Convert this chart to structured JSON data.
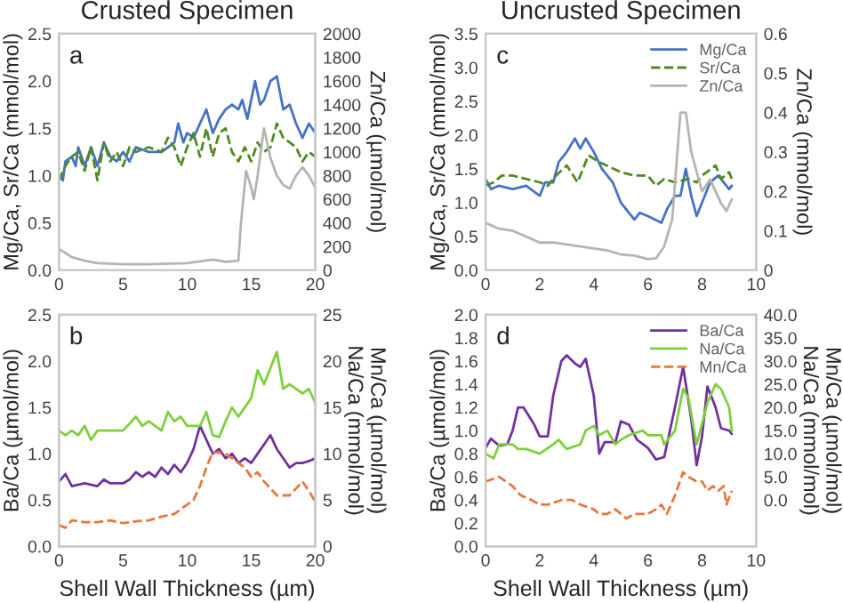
{
  "chart_data": [
    {
      "type": "line",
      "title": "Crusted Specimen",
      "ylabel": "Mg/Ca, Sr/Ca (mmol/mol)",
      "y2label": "Zn/Ca (µmol/mol)",
      "annotations": [
        "a"
      ],
      "xlim": [
        0,
        20
      ],
      "xticks": [
        0,
        5,
        10,
        15,
        20
      ],
      "ylim": [
        0,
        2.5
      ],
      "yticks": [
        {
          "value": 0,
          "label": "0.0"
        },
        0.5,
        {
          "value": 1,
          "label": "1.0"
        },
        1.5,
        {
          "value": 2,
          "label": "2.0"
        },
        2.5
      ],
      "y2lim": [
        0,
        2000
      ],
      "y2ticks": [
        0,
        200,
        400,
        600,
        800,
        1000,
        1200,
        1400,
        1600,
        1800,
        2000
      ],
      "series": [
        {
          "color": "#4472c4",
          "line_style": "solid",
          "x": [
            0,
            0.3,
            0.5,
            1,
            1.3,
            1.5,
            2,
            2.5,
            3,
            3.5,
            4,
            4.5,
            5,
            5.5,
            6,
            7,
            8,
            8.5,
            9,
            9.3,
            9.7,
            10,
            10.5,
            11,
            11.5,
            12,
            12.5,
            13,
            13.5,
            14,
            14.3,
            14.7,
            15,
            15.3,
            15.7,
            16,
            16.5,
            17,
            17.5,
            18,
            18.5,
            19,
            19.5,
            20
          ],
          "values": [
            1.0,
            0.95,
            1.15,
            1.2,
            1.1,
            1.3,
            1.1,
            1.3,
            1.1,
            1.35,
            1.2,
            1.15,
            1.25,
            1.15,
            1.3,
            1.25,
            1.25,
            1.3,
            1.35,
            1.55,
            1.35,
            1.45,
            1.4,
            1.55,
            1.7,
            1.45,
            1.6,
            1.7,
            1.75,
            1.7,
            1.8,
            1.6,
            1.8,
            2.0,
            1.75,
            1.8,
            2.0,
            2.05,
            1.7,
            1.75,
            1.55,
            1.4,
            1.55,
            1.45
          ]
        },
        {
          "color": "#4f8a1f",
          "line_style": "dashed",
          "x": [
            0,
            0.5,
            1,
            1.5,
            2,
            2.5,
            3,
            3.5,
            4,
            4.5,
            5,
            5.5,
            6,
            7,
            8,
            8.5,
            9,
            9.5,
            10,
            10.5,
            11,
            11.5,
            12,
            12.5,
            13,
            13.5,
            14,
            14.5,
            15,
            15.5,
            16,
            16.5,
            17,
            17.5,
            18,
            18.5,
            19,
            19.5,
            20
          ],
          "values": [
            0.95,
            1.1,
            1.2,
            1.25,
            1.05,
            1.3,
            0.95,
            1.35,
            1.15,
            1.25,
            1.1,
            1.3,
            1.25,
            1.3,
            1.25,
            1.4,
            1.3,
            1.1,
            1.3,
            1.45,
            1.2,
            1.5,
            1.2,
            1.45,
            1.5,
            1.25,
            1.15,
            1.3,
            1.15,
            1.35,
            1.25,
            1.3,
            1.55,
            1.4,
            1.35,
            1.3,
            1.15,
            1.25,
            1.2
          ]
        },
        {
          "color": "#b4b4b4",
          "line_style": "solid",
          "axis": "y2",
          "x": [
            0,
            1,
            2,
            3,
            5,
            7,
            10,
            12,
            13,
            14,
            14.2,
            14.6,
            15,
            15.2,
            15.5,
            15.8,
            16,
            16.5,
            17,
            17.5,
            18,
            18.5,
            19,
            19.5,
            20
          ],
          "values": [
            180,
            110,
            80,
            60,
            50,
            50,
            60,
            90,
            70,
            80,
            400,
            840,
            700,
            600,
            800,
            1050,
            1200,
            950,
            800,
            720,
            690,
            800,
            870,
            800,
            700
          ]
        }
      ]
    },
    {
      "type": "line",
      "xlabel": "Shell Wall Thickness (µm)",
      "ylabel": "Ba/Ca (µmol/mol)",
      "y2label": "Mn/Ca (µmol/mol)\nNa/Ca (mmol/mol)",
      "annotations": [
        "b"
      ],
      "xlim": [
        0,
        20
      ],
      "xticks": [
        0,
        5,
        10,
        15,
        20
      ],
      "ylim": [
        0,
        2.5
      ],
      "yticks": [
        {
          "value": 0,
          "label": "0.0"
        },
        0.5,
        {
          "value": 1,
          "label": "1.0"
        },
        1.5,
        {
          "value": 2,
          "label": "2.0"
        },
        2.5
      ],
      "y2lim": [
        0,
        25
      ],
      "y2ticks": [
        0,
        5,
        10,
        15,
        20,
        25
      ],
      "series": [
        {
          "color": "#7030a0",
          "line_style": "solid",
          "x": [
            0,
            0.5,
            1,
            2,
            3,
            3.5,
            4,
            5,
            5.5,
            6,
            6.5,
            7,
            7.5,
            8,
            8.5,
            9,
            9.5,
            10,
            10.5,
            11,
            11.5,
            12,
            12.5,
            13,
            13.5,
            14,
            14.5,
            15,
            15.5,
            16,
            16.5,
            17,
            17.5,
            18,
            18.5,
            19,
            19.5,
            20
          ],
          "values": [
            0.7,
            0.78,
            0.65,
            0.68,
            0.65,
            0.72,
            0.68,
            0.68,
            0.72,
            0.8,
            0.75,
            0.8,
            0.75,
            0.85,
            0.78,
            0.88,
            0.8,
            0.9,
            1.05,
            1.3,
            1.15,
            1.0,
            1.05,
            0.95,
            1.0,
            0.9,
            0.95,
            0.9,
            1.0,
            1.1,
            1.2,
            1.05,
            0.95,
            0.85,
            0.9,
            0.9,
            0.92,
            0.95
          ]
        },
        {
          "color": "#7ed03a",
          "line_style": "solid",
          "axis": "y2",
          "x": [
            0,
            0.5,
            1,
            1.5,
            2,
            2.5,
            3,
            4,
            5,
            6,
            6.5,
            7,
            8,
            8.5,
            9,
            9.5,
            10,
            11,
            11.5,
            12,
            12.5,
            13,
            13.5,
            14,
            15,
            15.5,
            16,
            17,
            17.5,
            18,
            19,
            19.5,
            20
          ],
          "values": [
            12.5,
            12,
            12.5,
            12,
            13,
            11.5,
            12.5,
            12.5,
            12.5,
            14,
            13,
            13.5,
            12.5,
            14.5,
            13.5,
            14,
            13,
            13,
            14.5,
            12,
            11.8,
            13.5,
            15,
            14,
            16,
            19,
            17.5,
            21,
            17,
            17.5,
            16.5,
            17,
            15.5
          ]
        },
        {
          "color": "#e8773a",
          "line_style": "dashed",
          "axis": "y2",
          "x": [
            0,
            0.5,
            1,
            2,
            3,
            4,
            5,
            6,
            7,
            8,
            9,
            10,
            10.5,
            11,
            11.5,
            12,
            13,
            14,
            14.5,
            15,
            15.5,
            16,
            17,
            18,
            19,
            19.5,
            20
          ],
          "values": [
            2.3,
            2,
            2.8,
            2.6,
            2.6,
            2.8,
            2.5,
            2.7,
            2.8,
            3.2,
            3.5,
            4.5,
            5,
            6.5,
            8.5,
            10.2,
            10,
            9,
            8.5,
            7.5,
            8,
            7,
            5.5,
            5.5,
            7,
            6,
            4.8
          ]
        }
      ]
    },
    {
      "type": "line",
      "title": "Uncrusted Specimen",
      "ylabel": "Mg/Ca, Sr/Ca (mmol/mol)",
      "y2label": "Zn/Ca (mmol/mol)",
      "annotations": [
        "c"
      ],
      "legend": "top right",
      "xlim": [
        0,
        10
      ],
      "xticks": [
        0,
        2,
        4,
        6,
        8,
        10
      ],
      "ylim": [
        0,
        3.5
      ],
      "yticks": [
        {
          "value": 0,
          "label": "0.0"
        },
        0.5,
        {
          "value": 1,
          "label": "1.0"
        },
        1.5,
        {
          "value": 2,
          "label": "2.0"
        },
        2.5,
        {
          "value": 3,
          "label": "3.0"
        },
        3.5
      ],
      "y2lim": [
        0,
        0.6
      ],
      "y2ticks": [
        0,
        0.1,
        0.2,
        0.3,
        0.4,
        0.5,
        0.6
      ],
      "series": [
        {
          "name": "Mg/Ca",
          "color": "#4472c4",
          "line_style": "solid",
          "x": [
            0,
            0.2,
            0.5,
            1,
            1.5,
            2,
            2.2,
            2.5,
            2.7,
            3,
            3.3,
            3.5,
            3.7,
            4,
            4.3,
            4.7,
            5,
            5.5,
            5.7,
            6,
            6.5,
            6.7,
            7,
            7.2,
            7.4,
            7.6,
            7.8,
            8,
            8.3,
            8.6,
            8.8,
            9,
            9.1
          ],
          "values": [
            1.35,
            1.2,
            1.25,
            1.2,
            1.25,
            1.1,
            1.3,
            1.3,
            1.6,
            1.75,
            1.95,
            1.8,
            1.95,
            1.75,
            1.5,
            1.3,
            1.0,
            0.75,
            0.85,
            0.8,
            0.7,
            0.9,
            1.1,
            1.1,
            1.5,
            1.1,
            0.8,
            1.0,
            1.3,
            1.4,
            1.3,
            1.2,
            1.25
          ]
        },
        {
          "name": "Sr/Ca",
          "color": "#4f8a1f",
          "line_style": "dashed",
          "x": [
            0,
            0.3,
            0.6,
            1,
            1.5,
            2,
            2.3,
            2.6,
            3,
            3.4,
            3.8,
            4.2,
            5,
            5.5,
            6,
            6.3,
            6.6,
            7,
            7.5,
            7.8,
            8,
            8.5,
            8.7,
            9,
            9.1
          ],
          "values": [
            1.25,
            1.3,
            1.4,
            1.4,
            1.35,
            1.3,
            1.25,
            1.4,
            1.55,
            1.3,
            1.7,
            1.6,
            1.45,
            1.4,
            1.4,
            1.25,
            1.35,
            1.3,
            1.35,
            1.3,
            1.4,
            1.55,
            1.35,
            1.45,
            1.35
          ]
        },
        {
          "name": "Zn/Ca",
          "color": "#b4b4b4",
          "line_style": "solid",
          "axis": "y2",
          "x": [
            0,
            0.5,
            1,
            1.5,
            2,
            2.5,
            3,
            3.5,
            4,
            4.5,
            5,
            5.5,
            6,
            6.3,
            6.6,
            6.9,
            7.2,
            7.4,
            7.6,
            7.8,
            8,
            8.3,
            8.5,
            8.7,
            8.9,
            9.1
          ],
          "values": [
            0.12,
            0.105,
            0.1,
            0.085,
            0.07,
            0.07,
            0.065,
            0.06,
            0.055,
            0.05,
            0.04,
            0.037,
            0.028,
            0.03,
            0.06,
            0.13,
            0.4,
            0.4,
            0.3,
            0.25,
            0.2,
            0.23,
            0.2,
            0.17,
            0.15,
            0.18
          ]
        }
      ]
    },
    {
      "type": "line",
      "xlabel": "Shell Wall Thickness (µm)",
      "ylabel": "Ba/Ca (µmol/mol)",
      "y2label": "Mn/Ca (µmol/mol)\nNa/Ca (mmol/mol)",
      "annotations": [
        "d"
      ],
      "legend": "top right",
      "xlim": [
        0,
        10
      ],
      "xticks": [
        0,
        2,
        4,
        6,
        8,
        10
      ],
      "ylim": [
        0,
        2.0
      ],
      "yticks": [
        {
          "value": 0,
          "label": "0.0"
        },
        0.2,
        0.4,
        0.6,
        0.8,
        {
          "value": 1,
          "label": "1.0"
        },
        1.2,
        1.4,
        1.6,
        1.8,
        {
          "value": 2,
          "label": "2.0"
        }
      ],
      "y2lim": [
        -10,
        40
      ],
      "y2ticks": [
        {
          "value": 0,
          "label": "0.0"
        },
        {
          "value": 5,
          "label": "5.0"
        },
        {
          "value": 10,
          "label": "10.0"
        },
        {
          "value": 15,
          "label": "15.0"
        },
        {
          "value": 20,
          "label": "20.0"
        },
        {
          "value": 25,
          "label": "25.0"
        },
        {
          "value": 30,
          "label": "30.0"
        },
        {
          "value": 35,
          "label": "35.0"
        },
        {
          "value": 40,
          "label": "40.0"
        }
      ],
      "series": [
        {
          "name": "Ba/Ca",
          "color": "#7030a0",
          "line_style": "solid",
          "x": [
            0,
            0.2,
            0.5,
            0.8,
            1,
            1.2,
            1.4,
            1.8,
            2,
            2.3,
            2.5,
            2.8,
            3,
            3.3,
            3.5,
            3.7,
            4,
            4.2,
            4.4,
            4.8,
            5,
            5.3,
            5.6,
            6,
            6.3,
            6.6,
            7,
            7.3,
            7.6,
            7.8,
            8,
            8.2,
            8.5,
            8.7,
            9,
            9.1
          ],
          "values": [
            0.85,
            0.93,
            0.87,
            0.88,
            1.0,
            1.2,
            1.2,
            1.05,
            0.95,
            0.95,
            1.3,
            1.6,
            1.65,
            1.58,
            1.55,
            1.62,
            1.3,
            0.8,
            0.9,
            0.9,
            1.08,
            1.05,
            0.92,
            0.85,
            0.75,
            0.77,
            1.2,
            1.55,
            1.1,
            0.7,
            0.95,
            1.38,
            1.2,
            1.02,
            1.0,
            0.97
          ]
        },
        {
          "name": "Na/Ca",
          "color": "#7ed03a",
          "line_style": "solid",
          "axis": "y2",
          "x": [
            0,
            0.3,
            0.5,
            1,
            1.2,
            1.5,
            2,
            2.5,
            2.7,
            3,
            3.5,
            3.7,
            4,
            4.2,
            4.5,
            4.8,
            5,
            5.3,
            5.8,
            6,
            6.5,
            6.6,
            7,
            7.3,
            7.5,
            7.8,
            8.2,
            8.5,
            8.7,
            9,
            9.1
          ],
          "values": [
            10,
            9,
            12,
            12,
            11,
            11,
            10,
            12,
            13,
            11,
            12,
            15,
            16,
            14,
            15,
            12,
            13,
            14,
            15,
            14,
            14,
            12,
            15,
            24,
            22,
            12,
            21,
            25,
            24,
            20,
            15
          ]
        },
        {
          "name": "Mn/Ca",
          "color": "#e8773a",
          "line_style": "dashed",
          "axis": "y2",
          "x": [
            0,
            0.5,
            1,
            1.3,
            1.7,
            2,
            2.3,
            2.8,
            3.2,
            3.5,
            4,
            4.2,
            4.5,
            4.8,
            5.2,
            5.5,
            5.8,
            6,
            6.3,
            6.5,
            6.7,
            7,
            7.3,
            7.5,
            7.8,
            8,
            8.2,
            8.4,
            8.6,
            8.8,
            8.9,
            9.1
          ],
          "values": [
            4,
            5,
            3,
            1,
            0,
            -1,
            -1,
            0,
            0,
            -1,
            -2,
            -3,
            -3,
            -2,
            -4,
            -3,
            -3,
            -3,
            -2,
            -1,
            -3,
            1,
            6,
            5,
            4,
            4,
            2,
            3,
            2,
            3,
            -1,
            2
          ]
        }
      ]
    }
  ]
}
